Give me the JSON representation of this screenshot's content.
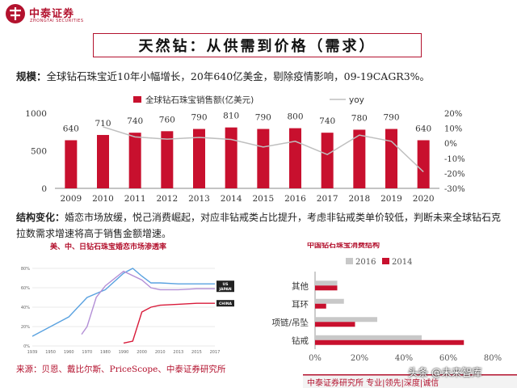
{
  "header": {
    "logo_cn": "中泰证券",
    "logo_en": "ZHONGTAI SECURITIES",
    "title": "天然钻：从供需到价格（需求）"
  },
  "scale": {
    "label": "规模：",
    "text": "全球钻石珠宝近10年小幅增长，20年640亿美金，剔除疫情影响，09-19CAGR3%。"
  },
  "structure": {
    "label": "结构变化：",
    "text": "婚恋市场放缓，悦己消费崛起，对应非钻戒类占比提升，考虑非钻戒类单价较低，判断未来全球钻石克拉数需求增速将高于销售金额增速。"
  },
  "source": "来源：贝恩、戴比尔斯、PriceScope、中泰证券研究所",
  "footer": "中泰证券研究所 专业|领先|深度|诚信",
  "watermark": "头条 @未来智库",
  "colors": {
    "brand": "#b3122e",
    "bar": "#c8102e",
    "yoy_line": "#bfbfbf",
    "light_bar": "#c8c8c8"
  },
  "chart_data": [
    {
      "type": "bar",
      "title": "",
      "categories": [
        "2009",
        "2010",
        "2011",
        "2012",
        "2013",
        "2014",
        "2015",
        "2016",
        "2017",
        "2018",
        "2019",
        "2020"
      ],
      "series": [
        {
          "name": "全球钻石珠宝销售额(亿美元)",
          "type": "bar",
          "axis": "left",
          "values": [
            640,
            710,
            740,
            760,
            790,
            810,
            790,
            800,
            740,
            780,
            790,
            640
          ]
        },
        {
          "name": "yoy",
          "type": "line",
          "axis": "right",
          "values": [
            null,
            10.9,
            4.2,
            2.7,
            3.9,
            2.5,
            -2.5,
            1.3,
            -7.5,
            5.4,
            1.3,
            -19.0
          ]
        }
      ],
      "ylim_left": [
        0,
        1000
      ],
      "left_ticks": [
        "0",
        "500",
        "1000"
      ],
      "ylim_right": [
        -30,
        20
      ],
      "right_ticks": [
        "20%",
        "10%",
        "0%",
        "-10%",
        "-20%",
        "-30%"
      ],
      "legend": "top"
    },
    {
      "type": "line",
      "title": "美、中、日钻石珠宝婚恋市场渗透率",
      "x_ticks": [
        "1939",
        "1950",
        "1960",
        "1970",
        "1980",
        "1990",
        "2000",
        "2010",
        "2013",
        "2015",
        "2017"
      ],
      "y_ticks": [
        "0%",
        "20%",
        "40%",
        "60%",
        "80%"
      ],
      "ylim": [
        0,
        80
      ],
      "series": [
        {
          "name": "US",
          "color": "#5aa2e0",
          "points": [
            [
              1939,
              10
            ],
            [
              1950,
              20
            ],
            [
              1960,
              30
            ],
            [
              1970,
              50
            ],
            [
              1980,
              58
            ],
            [
              1990,
              75
            ],
            [
              1995,
              80
            ],
            [
              2000,
              72
            ],
            [
              2005,
              65
            ],
            [
              2010,
              65
            ],
            [
              2013,
              64
            ],
            [
              2015,
              64
            ],
            [
              2017,
              64
            ]
          ]
        },
        {
          "name": "JAPAN",
          "color": "#b38fd6",
          "points": [
            [
              1967,
              12
            ],
            [
              1970,
              20
            ],
            [
              1975,
              50
            ],
            [
              1980,
              62
            ],
            [
              1990,
              77
            ],
            [
              2000,
              68
            ],
            [
              2005,
              60
            ],
            [
              2010,
              58
            ],
            [
              2013,
              58
            ],
            [
              2015,
              59
            ],
            [
              2017,
              59
            ]
          ]
        },
        {
          "name": "CHINA",
          "color": "#d81b3a",
          "points": [
            [
              1990,
              3
            ],
            [
              1995,
              5
            ],
            [
              2000,
              35
            ],
            [
              2005,
              40
            ],
            [
              2010,
              42
            ],
            [
              2013,
              43
            ],
            [
              2015,
              44
            ],
            [
              2017,
              44
            ]
          ]
        }
      ]
    },
    {
      "type": "bar",
      "orientation": "horizontal",
      "title": "中国钻石珠宝消费结构",
      "categories": [
        "其他",
        "耳环",
        "项链/吊坠",
        "钻戒"
      ],
      "series": [
        {
          "name": "2016",
          "color": "#c8c8c8",
          "values": [
            10,
            13,
            28,
            48
          ]
        },
        {
          "name": "2014",
          "color": "#c8102e",
          "values": [
            10,
            5,
            18,
            67
          ]
        }
      ],
      "x_ticks": [
        "0%",
        "20%",
        "40%",
        "60%",
        "80%"
      ],
      "xlim": [
        0,
        80
      ],
      "legend": "top"
    }
  ]
}
